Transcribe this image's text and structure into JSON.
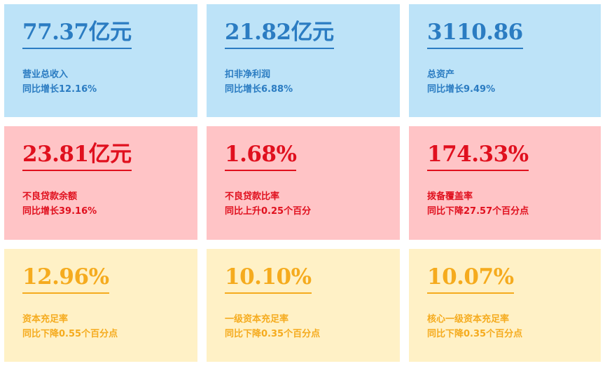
{
  "cards": [
    {
      "value": "77.37亿元",
      "label": "营业总收入",
      "change": "同比增长12.16%",
      "color": "#2b7cc2"
    },
    {
      "value": "21.82亿元",
      "label": "扣非净利润",
      "change": "同比增长6.88%",
      "color": "#2b7cc2"
    },
    {
      "value": "3110.86",
      "label": "总资产",
      "change": "同比增长9.49%",
      "color": "#2b7cc2"
    },
    {
      "value": "23.81亿元",
      "label": "不良贷款余额",
      "change": "同比增长39.16%",
      "color": "#e0101e"
    },
    {
      "value": "1.68%",
      "label": "不良贷款比率",
      "change": "同比上升0.25个百分",
      "color": "#e0101e"
    },
    {
      "value": "174.33%",
      "label": "拨备覆盖率",
      "change": "同比下降27.57个百分点",
      "color": "#e0101e"
    },
    {
      "value": "12.96%",
      "label": "资本充足率",
      "change": "同比下降0.55个百分点",
      "color": "#f5ab1e"
    },
    {
      "value": "10.10%",
      "label": "一级资本充足率",
      "change": "同比下降0.35个百分点",
      "color": "#f5ab1e"
    },
    {
      "value": "10.07%",
      "label": "核心一级资本充足率",
      "change": "同比下降0.35个百分点",
      "color": "#f5ab1e"
    }
  ]
}
